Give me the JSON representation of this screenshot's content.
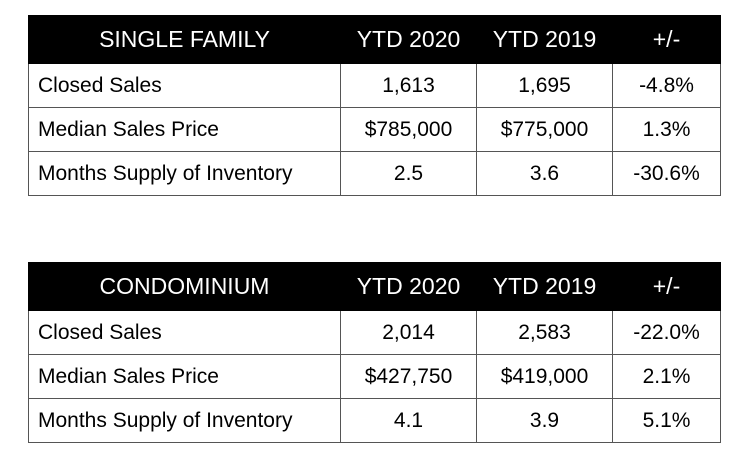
{
  "chart_data": [
    {
      "type": "table",
      "title": "SINGLE FAMILY",
      "columns": [
        "YTD 2020",
        "YTD 2019",
        "+/-"
      ],
      "rows": [
        {
          "label": "Closed Sales",
          "values": [
            "1,613",
            "1,695",
            "-4.8%"
          ]
        },
        {
          "label": "Median Sales Price",
          "values": [
            "$785,000",
            "$775,000",
            "1.3%"
          ]
        },
        {
          "label": "Months Supply of Inventory",
          "values": [
            "2.5",
            "3.6",
            "-30.6%"
          ]
        }
      ]
    },
    {
      "type": "table",
      "title": "CONDOMINIUM",
      "columns": [
        "YTD 2020",
        "YTD 2019",
        "+/-"
      ],
      "rows": [
        {
          "label": "Closed Sales",
          "values": [
            "2,014",
            "2,583",
            "-22.0%"
          ]
        },
        {
          "label": "Median Sales Price",
          "values": [
            "$427,750",
            "$419,000",
            "2.1%"
          ]
        },
        {
          "label": "Months Supply of Inventory",
          "values": [
            "4.1",
            "3.9",
            "5.1%"
          ]
        }
      ]
    }
  ]
}
